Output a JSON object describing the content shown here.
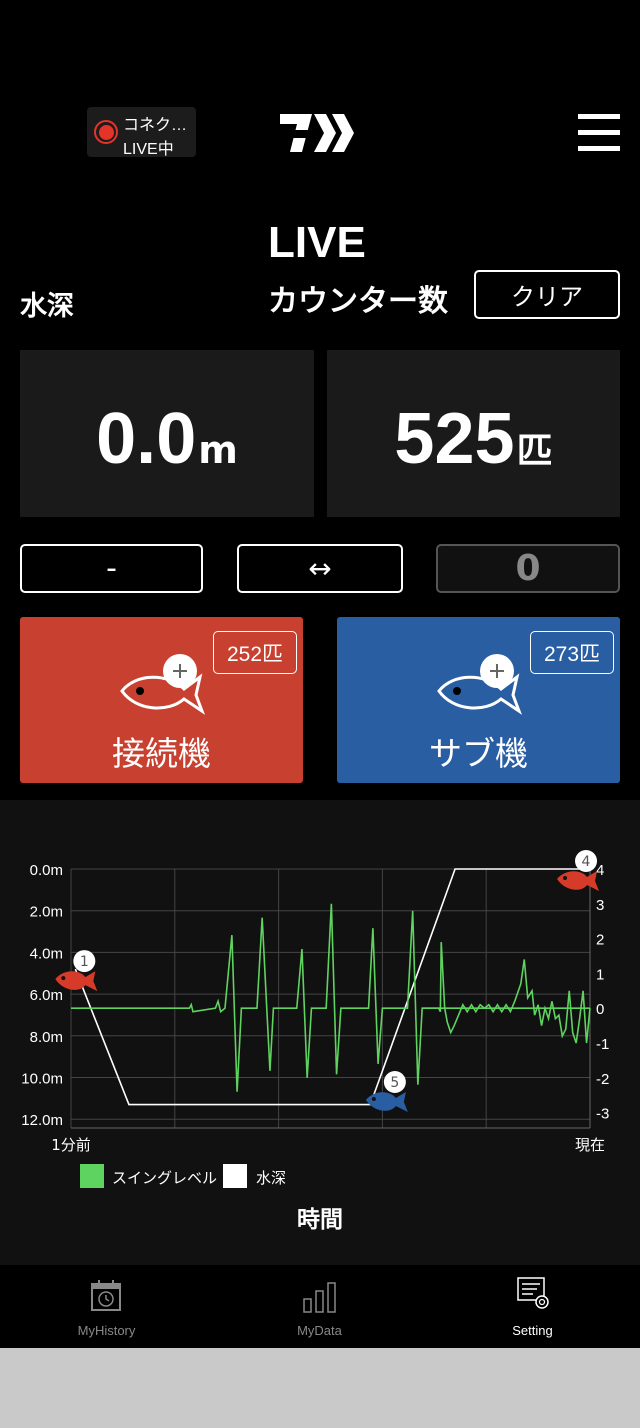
{
  "header": {
    "status_line1": "コネク…",
    "status_line2": "LIVE中",
    "status_color": "#e3342a",
    "logo": "DAIWA",
    "menu_icon": "hamburger-icon"
  },
  "live": {
    "title": "LIVE",
    "depth_label": "水深",
    "counter_label": "カウンター数",
    "clear_label": "クリア"
  },
  "depth": {
    "value": "0.0",
    "unit": "m"
  },
  "counter": {
    "value": "525",
    "unit": "匹"
  },
  "controls": {
    "minus_label": "-",
    "swap_label": "↔",
    "input_value": "0"
  },
  "main_unit": {
    "label": "接続機",
    "count": "252匹",
    "color": "#c8402f"
  },
  "sub_unit": {
    "label": "サブ機",
    "count": "273匹",
    "color": "#2a5ea3"
  },
  "chart_data": {
    "type": "line",
    "xlabel": "時間",
    "x_tick_labels": [
      "1分前",
      "現在"
    ],
    "x_range_seconds": [
      0,
      60
    ],
    "left_axis": {
      "ticks": [
        "0.0m",
        "2.0m",
        "4.0m",
        "6.0m",
        "8.0m",
        "10.0m",
        "12.0m"
      ],
      "range": [
        0,
        12
      ],
      "inverted": true
    },
    "right_axis": {
      "ticks": [
        "4",
        "3",
        "2",
        "1",
        "0",
        "-1",
        "-2",
        "-3"
      ],
      "range": [
        -3,
        4
      ]
    },
    "grid": true,
    "legend": [
      {
        "name": "スイングレベル",
        "color": "#5fd35f"
      },
      {
        "name": "水深",
        "color": "#ffffff"
      }
    ],
    "series": [
      {
        "name": "水深",
        "axis": "left",
        "color": "#ffffff",
        "points": [
          [
            0.5,
            4.8
          ],
          [
            6.7,
            11.3
          ],
          [
            34.6,
            11.3
          ],
          [
            44.4,
            0
          ],
          [
            60,
            0
          ]
        ]
      },
      {
        "name": "スイングレベル",
        "axis": "right",
        "color": "#5fd35f",
        "points": [
          [
            0,
            0
          ],
          [
            13.7,
            0
          ],
          [
            13.9,
            0.1
          ],
          [
            14.1,
            -0.1
          ],
          [
            16.7,
            0
          ],
          [
            17,
            0.2
          ],
          [
            17.3,
            -0.1
          ],
          [
            17.8,
            0
          ],
          [
            18.6,
            2.1
          ],
          [
            19.2,
            -2.4
          ],
          [
            19.7,
            0
          ],
          [
            21.5,
            0
          ],
          [
            22.1,
            2.6
          ],
          [
            23,
            -1.8
          ],
          [
            23.4,
            0
          ],
          [
            26.1,
            0
          ],
          [
            26.7,
            1.7
          ],
          [
            27.3,
            -2.0
          ],
          [
            27.8,
            0
          ],
          [
            29.5,
            0
          ],
          [
            30.1,
            3.0
          ],
          [
            30.7,
            -1.9
          ],
          [
            31.2,
            0
          ],
          [
            34.4,
            0
          ],
          [
            34.9,
            2.3
          ],
          [
            35.5,
            -1.6
          ],
          [
            36,
            0
          ],
          [
            38.9,
            0
          ],
          [
            39.5,
            2.8
          ],
          [
            40.1,
            -2.2
          ],
          [
            40.6,
            0
          ],
          [
            67.5,
            0
          ]
        ]
      },
      {
        "name": "スイングレベル-live",
        "axis": "right",
        "color": "#5fd35f",
        "points": [
          [
            40.6,
            0
          ],
          [
            42.5,
            0
          ],
          [
            42.7,
            -0.1
          ],
          [
            42.8,
            1.9
          ],
          [
            43.2,
            0
          ],
          [
            43.5,
            -0.4
          ],
          [
            43.9,
            -0.7
          ],
          [
            44.3,
            -0.5
          ],
          [
            44.8,
            -0.2
          ],
          [
            45.3,
            0.1
          ],
          [
            45.8,
            -0.1
          ],
          [
            46.3,
            0.1
          ],
          [
            46.8,
            -0.1
          ],
          [
            47.3,
            0.1
          ],
          [
            47.8,
            0
          ],
          [
            48.3,
            0.1
          ],
          [
            48.8,
            -0.1
          ],
          [
            49.3,
            0.1
          ],
          [
            49.8,
            -0.1
          ],
          [
            50.3,
            0.1
          ],
          [
            50.8,
            -0.1
          ],
          [
            51.3,
            0.2
          ],
          [
            52.0,
            0.7
          ],
          [
            52.4,
            1.4
          ],
          [
            52.8,
            0.3
          ],
          [
            53.3,
            0.5
          ],
          [
            53.6,
            -0.2
          ],
          [
            54.0,
            0.1
          ],
          [
            54.4,
            -0.5
          ],
          [
            54.8,
            0
          ],
          [
            55.2,
            -0.3
          ],
          [
            55.6,
            0.2
          ],
          [
            56.0,
            -0.3
          ],
          [
            56.4,
            -0.2
          ],
          [
            56.8,
            -0.8
          ],
          [
            57.2,
            -0.6
          ],
          [
            57.6,
            0.5
          ],
          [
            58.0,
            -0.7
          ],
          [
            58.4,
            -1.0
          ],
          [
            58.8,
            -0.3
          ],
          [
            59.2,
            0.5
          ],
          [
            59.6,
            -1.0
          ],
          [
            60,
            0
          ]
        ]
      }
    ],
    "markers": [
      {
        "label": "1",
        "color": "#d63b2a",
        "time": 0.5,
        "depth": 4.8
      },
      {
        "label": "5",
        "color": "#2a5ea3",
        "time": 36.4,
        "depth": 10.6
      },
      {
        "label": "4",
        "color": "#d63b2a",
        "time": 58.5,
        "depth": 0
      }
    ]
  },
  "nav": {
    "items": [
      {
        "label": "MyHistory",
        "icon": "calendar-history-icon"
      },
      {
        "label": "MyData",
        "icon": "bar-chart-icon"
      },
      {
        "label": "Setting",
        "icon": "settings-icon",
        "active": true
      }
    ]
  }
}
